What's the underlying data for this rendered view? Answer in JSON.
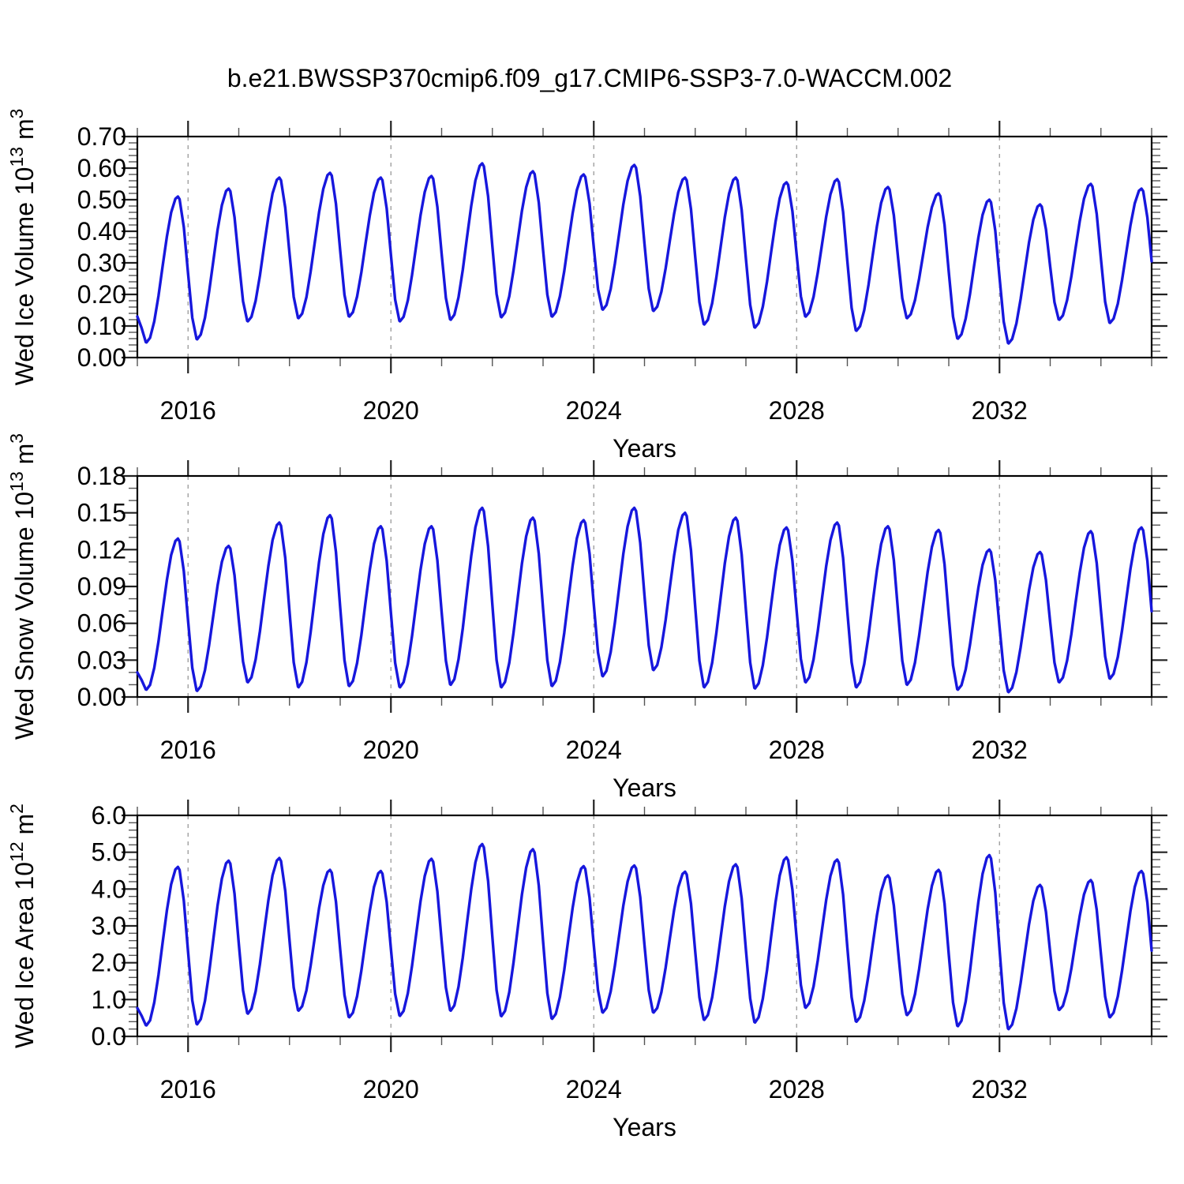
{
  "chart_data": {
    "type": "line",
    "title": "b.e21.BWSSP370cmip6.f09_g17.CMIP6-SSP3-7.0-WACCM.002",
    "line_color": "#1717dd",
    "frame_color": "#000000",
    "major_tick_color": "#222222",
    "minor_tick_color": "#555555",
    "grid_color": "#999999",
    "background": "#ffffff",
    "x_axis": {
      "label": "Years",
      "range": [
        2015,
        2035
      ],
      "major_ticks": [
        2016,
        2020,
        2024,
        2028,
        2032
      ],
      "xtick_labels": [
        "2016",
        "2020",
        "2024",
        "2028",
        "2032"
      ],
      "minor_step_years": 1,
      "gridlines": "dashed-at-major-ticks"
    },
    "sampling": "monthly",
    "seasonal_phase": {
      "trough_frac": 0.18,
      "peak_frac": 0.8
    },
    "years": [
      2015,
      2016,
      2017,
      2018,
      2019,
      2020,
      2021,
      2022,
      2023,
      2024,
      2025,
      2026,
      2027,
      2028,
      2029,
      2030,
      2031,
      2032,
      2033,
      2034
    ],
    "panels": [
      {
        "id": "wed-ice-volume",
        "ylabel_text": "Wed Ice Volume 10^13 m^3",
        "ylabel_segments": [
          {
            "t": "Wed Ice Volume 10",
            "sup": false
          },
          {
            "t": "13",
            "sup": true
          },
          {
            "t": " m",
            "sup": false
          },
          {
            "t": "3",
            "sup": true
          }
        ],
        "y_range": [
          0,
          0.7
        ],
        "y_major": 0.1,
        "y_minor": 0.02,
        "y_decimals": 2,
        "ytick_labels": [
          "0.00",
          "0.10",
          "0.20",
          "0.30",
          "0.40",
          "0.50",
          "0.60",
          "0.70"
        ],
        "start_value": 0.13,
        "end_value": 0.3,
        "annual_peaks": [
          0.51,
          0.535,
          0.57,
          0.585,
          0.57,
          0.575,
          0.615,
          0.59,
          0.58,
          0.61,
          0.57,
          0.57,
          0.555,
          0.565,
          0.54,
          0.52,
          0.5,
          0.485,
          0.55,
          0.535
        ],
        "annual_troughs": [
          0.048,
          0.058,
          0.115,
          0.125,
          0.13,
          0.115,
          0.12,
          0.128,
          0.13,
          0.152,
          0.148,
          0.105,
          0.095,
          0.13,
          0.085,
          0.125,
          0.06,
          0.045,
          0.12,
          0.11
        ],
        "post_trough": 0.11
      },
      {
        "id": "wed-snow-volume",
        "ylabel_text": "Wed Snow Volume 10^13 m^3",
        "ylabel_segments": [
          {
            "t": "Wed Snow Volume 10",
            "sup": false
          },
          {
            "t": "13",
            "sup": true
          },
          {
            "t": " m",
            "sup": false
          },
          {
            "t": "3",
            "sup": true
          }
        ],
        "y_range": [
          0,
          0.18
        ],
        "y_major": 0.03,
        "y_minor": 0.01,
        "y_decimals": 2,
        "ytick_labels": [
          "0.00",
          "0.03",
          "0.06",
          "0.09",
          "0.12",
          "0.15",
          "0.18"
        ],
        "start_value": 0.02,
        "end_value": 0.055,
        "annual_peaks": [
          0.129,
          0.123,
          0.142,
          0.148,
          0.139,
          0.139,
          0.154,
          0.146,
          0.144,
          0.154,
          0.15,
          0.146,
          0.138,
          0.142,
          0.139,
          0.136,
          0.12,
          0.118,
          0.135,
          0.138
        ],
        "annual_troughs": [
          0.006,
          0.005,
          0.012,
          0.008,
          0.009,
          0.008,
          0.01,
          0.008,
          0.009,
          0.017,
          0.022,
          0.008,
          0.007,
          0.012,
          0.008,
          0.01,
          0.006,
          0.004,
          0.012,
          0.015
        ],
        "post_trough": 0.012
      },
      {
        "id": "wed-ice-area",
        "ylabel_text": "Wed Ice Area 10^12 m^2",
        "ylabel_segments": [
          {
            "t": "Wed Ice Area 10",
            "sup": false
          },
          {
            "t": "12",
            "sup": true
          },
          {
            "t": " m",
            "sup": false
          },
          {
            "t": "2",
            "sup": true
          }
        ],
        "y_range": [
          0,
          6.0
        ],
        "y_major": 1.0,
        "y_minor": 0.2,
        "y_decimals": 1,
        "ytick_labels": [
          "0.0",
          "1.0",
          "2.0",
          "3.0",
          "4.0",
          "5.0",
          "6.0"
        ],
        "start_value": 0.77,
        "end_value": 2.6,
        "annual_peaks": [
          4.6,
          4.77,
          4.84,
          4.52,
          4.49,
          4.82,
          5.22,
          5.08,
          4.62,
          4.64,
          4.47,
          4.67,
          4.86,
          4.8,
          4.37,
          4.52,
          4.92,
          4.11,
          4.24,
          4.49
        ],
        "annual_troughs": [
          0.3,
          0.33,
          0.62,
          0.7,
          0.52,
          0.56,
          0.7,
          0.55,
          0.48,
          0.65,
          0.65,
          0.45,
          0.38,
          0.78,
          0.4,
          0.58,
          0.28,
          0.2,
          0.72,
          0.52
        ],
        "post_trough": 0.5
      }
    ]
  }
}
